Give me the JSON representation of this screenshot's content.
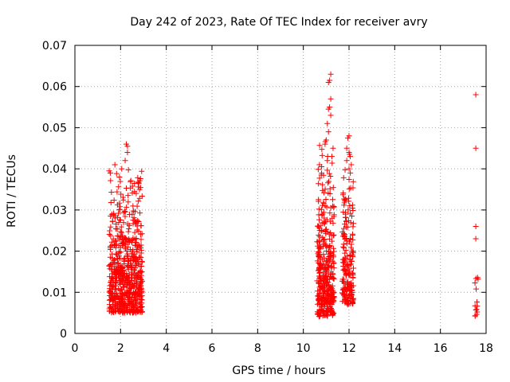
{
  "chart_data": {
    "type": "scatter",
    "title": "Day 242 of 2023, Rate Of TEC Index for receiver avry",
    "xlabel": "GPS time / hours",
    "ylabel": "ROTI / TECUs",
    "xlim": [
      0,
      18
    ],
    "ylim": [
      0,
      0.07
    ],
    "x_ticks": [
      "0",
      "2",
      "4",
      "6",
      "8",
      "10",
      "12",
      "14",
      "16",
      "18"
    ],
    "y_ticks": [
      "0",
      "0.01",
      "0.02",
      "0.03",
      "0.04",
      "0.05",
      "0.06",
      "0.07"
    ],
    "grid": true,
    "marker": "+",
    "series_color": "#ff0000",
    "clusters": [
      {
        "x_range": [
          1.5,
          2.95
        ],
        "y_range": [
          0.005,
          0.042
        ],
        "count": 650
      },
      {
        "x_range": [
          10.6,
          11.35
        ],
        "y_range": [
          0.004,
          0.048
        ],
        "count": 380
      },
      {
        "x_range": [
          11.7,
          12.2
        ],
        "y_range": [
          0.007,
          0.046
        ],
        "count": 200
      },
      {
        "x_range": [
          17.5,
          17.65
        ],
        "y_range": [
          0.004,
          0.018
        ],
        "count": 14
      }
    ],
    "points": [
      [
        2.25,
        0.046
      ],
      [
        2.3,
        0.0455
      ],
      [
        2.3,
        0.044
      ],
      [
        2.2,
        0.042
      ],
      [
        1.75,
        0.041
      ],
      [
        1.5,
        0.0395
      ],
      [
        1.55,
        0.039
      ],
      [
        1.95,
        0.038
      ],
      [
        2.05,
        0.04
      ],
      [
        11.2,
        0.063
      ],
      [
        11.15,
        0.0615
      ],
      [
        11.1,
        0.061
      ],
      [
        11.2,
        0.057
      ],
      [
        11.15,
        0.055
      ],
      [
        11.1,
        0.0545
      ],
      [
        11.2,
        0.053
      ],
      [
        11.05,
        0.051
      ],
      [
        11.1,
        0.049
      ],
      [
        11.0,
        0.047
      ],
      [
        10.95,
        0.046
      ],
      [
        11.3,
        0.045
      ],
      [
        11.25,
        0.043
      ],
      [
        11.05,
        0.042
      ],
      [
        10.8,
        0.0405
      ],
      [
        12.0,
        0.048
      ],
      [
        11.95,
        0.0475
      ],
      [
        11.9,
        0.045
      ],
      [
        12.0,
        0.044
      ],
      [
        12.05,
        0.043
      ],
      [
        11.9,
        0.042
      ],
      [
        12.1,
        0.041
      ],
      [
        12.0,
        0.04
      ],
      [
        17.55,
        0.058
      ],
      [
        17.55,
        0.045
      ],
      [
        17.55,
        0.026
      ],
      [
        17.55,
        0.023
      ]
    ]
  }
}
